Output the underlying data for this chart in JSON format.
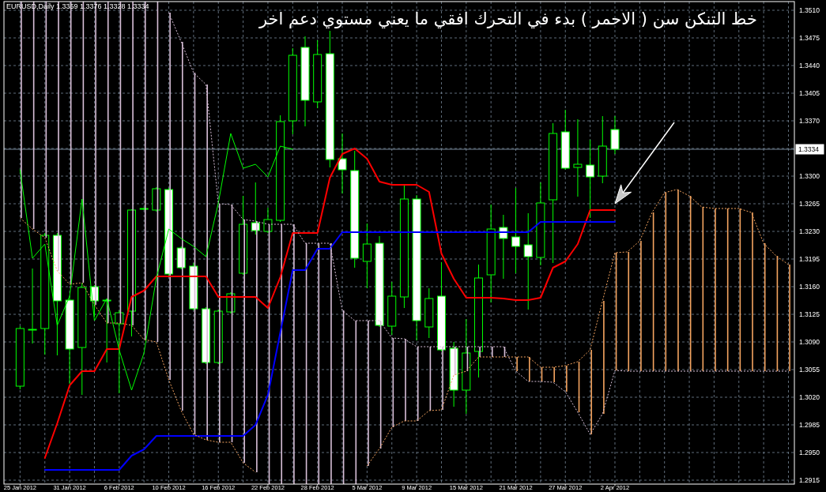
{
  "chart_data": {
    "type": "candlestick",
    "title": "EURUSD,Daily 1.3359 1.3376 1.3328 1.3334",
    "categories": [
      "25 Jan 2012",
      null,
      null,
      null,
      "31 Jan 2012",
      null,
      null,
      null,
      "6 Feb 2012",
      null,
      null,
      null,
      "10 Feb 2012",
      null,
      null,
      null,
      "16 Feb 2012",
      null,
      null,
      null,
      "22 Feb 2012",
      null,
      null,
      null,
      "28 Feb 2012",
      null,
      null,
      null,
      "5 Mar 2012",
      null,
      null,
      null,
      "9 Mar 2012",
      null,
      null,
      null,
      "15 Mar 2012",
      null,
      null,
      null,
      "21 Mar 2012",
      null,
      null,
      null,
      "27 Mar 2012",
      null,
      null,
      null,
      "2 Apr 2012",
      null,
      null,
      null,
      null,
      null,
      null,
      null,
      null,
      null,
      null,
      null,
      null,
      null,
      null
    ],
    "ylim": [
      1.291,
      1.3521
    ],
    "yticks": [
      1.2915,
      {
        "value": 1.295,
        "label": "1.2950"
      },
      1.2985,
      {
        "value": 1.302,
        "label": "1.3020"
      },
      1.3055,
      {
        "value": 1.309,
        "label": "1.3090"
      },
      1.3125,
      {
        "value": 1.316,
        "label": "1.3160"
      },
      1.3195,
      {
        "value": 1.323,
        "label": "1.3230"
      },
      1.3265,
      {
        "value": 1.33,
        "label": "1.3300"
      },
      {
        "value": 1.3335,
        "label": null
      },
      {
        "value": 1.337,
        "label": "1.3370"
      },
      1.3405,
      {
        "value": 1.344,
        "label": "1.3440"
      },
      1.3475,
      {
        "value": 1.351,
        "label": "1.3510"
      }
    ],
    "grid": true,
    "series": [
      {
        "type": "candlestick",
        "color": "#00ff00",
        "ohlc": [
          [
            1.3034,
            1.311,
            1.303,
            1.3107
          ],
          [
            1.3105,
            1.3183,
            1.3088,
            1.3106
          ],
          [
            1.3107,
            1.3228,
            1.3074,
            1.3225
          ],
          [
            1.3225,
            1.3228,
            1.3073,
            1.3142
          ],
          [
            1.3143,
            1.3148,
            1.3037,
            1.3081
          ],
          [
            1.3083,
            1.3165,
            1.3023,
            1.3159
          ],
          [
            1.316,
            1.3162,
            1.3122,
            1.3142
          ],
          [
            1.3142,
            1.3144,
            1.3064,
            1.3143
          ],
          [
            1.3113,
            1.313,
            1.3025,
            1.3127
          ],
          [
            1.3129,
            1.3258,
            1.3097,
            1.3257
          ],
          [
            1.3258,
            1.326,
            1.3257,
            1.3259
          ],
          [
            1.3257,
            1.3286,
            1.3255,
            1.3284
          ],
          [
            1.3283,
            1.3285,
            1.3174,
            1.3176
          ],
          [
            1.3209,
            1.3211,
            1.3182,
            1.3184
          ],
          [
            1.3186,
            1.319,
            1.313,
            1.3132
          ],
          [
            1.3132,
            1.3134,
            1.3062,
            1.3064
          ],
          [
            1.3064,
            1.3131,
            1.3062,
            1.3129
          ],
          [
            1.3128,
            1.3153,
            1.3126,
            1.3151
          ],
          [
            1.3177,
            1.3275,
            1.3175,
            1.3239
          ],
          [
            1.3241,
            1.3292,
            1.3226,
            1.3231
          ],
          [
            1.323,
            1.326,
            1.3228,
            1.3245
          ],
          [
            1.3244,
            1.3377,
            1.3242,
            1.3369
          ],
          [
            1.337,
            1.3462,
            1.3353,
            1.3453
          ],
          [
            1.3463,
            1.3477,
            1.3363,
            1.3396
          ],
          [
            1.3394,
            1.3472,
            1.3386,
            1.3454
          ],
          [
            1.3455,
            1.3484,
            1.3311,
            1.3321
          ],
          [
            1.3322,
            1.3354,
            1.3278,
            1.3308
          ],
          [
            1.3307,
            1.3332,
            1.3184,
            1.3196
          ],
          [
            1.3192,
            1.324,
            1.3158,
            1.3214
          ],
          [
            1.3215,
            1.3224,
            1.3109,
            1.3111
          ],
          [
            1.311,
            1.3166,
            1.3099,
            1.3148
          ],
          [
            1.3147,
            1.3288,
            1.3133,
            1.3271
          ],
          [
            1.3271,
            1.3276,
            1.3092,
            1.3117
          ],
          [
            1.3109,
            1.3158,
            1.3095,
            1.3145
          ],
          [
            1.3148,
            1.3191,
            1.3078,
            1.308
          ],
          [
            1.3082,
            1.309,
            1.3008,
            1.3029
          ],
          [
            1.3029,
            1.3119,
            1.2999,
            1.3076
          ],
          [
            1.3078,
            1.3188,
            1.3045,
            1.3171
          ],
          [
            1.3175,
            1.3264,
            1.314,
            1.3233
          ],
          [
            1.3235,
            1.3251,
            1.317,
            1.3221
          ],
          [
            1.3223,
            1.3285,
            1.3177,
            1.3211
          ],
          [
            1.3213,
            1.3253,
            1.3131,
            1.3198
          ],
          [
            1.3197,
            1.3292,
            1.3187,
            1.3266
          ],
          [
            1.327,
            1.3367,
            1.319,
            1.3354
          ],
          [
            1.3356,
            1.3384,
            1.3308,
            1.331
          ],
          [
            1.3311,
            1.3372,
            1.3274,
            1.3315
          ],
          [
            1.3314,
            1.3346,
            1.3247,
            1.3299
          ],
          [
            1.33,
            1.3376,
            1.3291,
            1.3338
          ],
          [
            1.3359,
            1.3376,
            1.3328,
            1.3334
          ],
          null,
          null,
          null,
          null,
          null,
          null,
          null,
          null,
          null,
          null,
          null,
          null,
          null,
          null
        ],
        "colors": [
          "#000000",
          "#000000",
          "#000000",
          "#ffffff",
          "#ffffff",
          "#000000",
          "#ffffff",
          "#000000",
          "#000000",
          "#000000",
          "#000000",
          "#000000",
          "#ffffff",
          "#ffffff",
          "#ffffff",
          "#ffffff",
          "#000000",
          "#000000",
          "#000000",
          "#ffffff",
          "#000000",
          "#000000",
          "#000000",
          "#ffffff",
          "#000000",
          "#ffffff",
          "#ffffff",
          "#ffffff",
          "#000000",
          "#ffffff",
          "#000000",
          "#000000",
          "#ffffff",
          "#000000",
          "#ffffff",
          "#ffffff",
          "#000000",
          "#000000",
          "#000000",
          "#ffffff",
          "#ffffff",
          "#ffffff",
          "#000000",
          "#000000",
          "#ffffff",
          "#000000",
          "#ffffff",
          "#000000",
          "#ffffff",
          null,
          null,
          null,
          null,
          null,
          null,
          null,
          null,
          null,
          null,
          null,
          null,
          null,
          null
        ]
      },
      {
        "type": "line",
        "color": "#ff0000",
        "values": [
          null,
          null,
          1.2943,
          1.2987,
          1.3035,
          1.3053,
          1.3053,
          1.3081,
          1.3081,
          1.3147,
          1.3155,
          1.3173,
          1.3173,
          1.3173,
          1.3173,
          1.3173,
          1.3147,
          1.3147,
          1.3147,
          1.3147,
          1.3133,
          1.3172,
          1.3228,
          1.3228,
          1.3228,
          1.3298,
          1.3328,
          1.3335,
          1.3322,
          1.3293,
          1.3289,
          1.3289,
          1.3289,
          1.328,
          1.3202,
          1.317,
          1.3146,
          1.3146,
          1.3146,
          1.3145,
          1.3143,
          1.3143,
          1.3146,
          1.3184,
          1.3192,
          1.3214,
          1.3257,
          1.3257,
          1.3257,
          null,
          null,
          null,
          null,
          null,
          null,
          null,
          null,
          null,
          null,
          null,
          null,
          null,
          null
        ]
      },
      {
        "type": "line",
        "color": "#0000ff",
        "values": [
          null,
          null,
          1.2928,
          1.2928,
          1.2928,
          1.2928,
          1.2928,
          1.2928,
          1.2928,
          1.2946,
          1.2954,
          1.2971,
          1.2971,
          1.2971,
          1.2971,
          1.2971,
          1.2971,
          1.2971,
          1.2971,
          1.2985,
          1.3023,
          1.3102,
          1.3181,
          1.3181,
          1.3208,
          1.3208,
          1.3229,
          1.3229,
          1.3229,
          1.3229,
          1.3229,
          1.3229,
          1.3229,
          1.3229,
          1.3229,
          1.3229,
          1.3229,
          1.3229,
          1.3229,
          1.3229,
          1.3229,
          1.3229,
          1.3242,
          1.3242,
          1.3242,
          1.3242,
          1.3242,
          1.3242,
          1.3242,
          null,
          null,
          null,
          null,
          null,
          null,
          null,
          null,
          null,
          null,
          null,
          null,
          null,
          null
        ]
      },
      {
        "type": "line",
        "color": "#00ff00",
        "values": [
          1.3308,
          1.3196,
          1.3214,
          1.3111,
          1.3148,
          1.3271,
          1.3117,
          1.3145,
          1.308,
          1.3029,
          1.3076,
          1.3171,
          1.3233,
          1.3221,
          1.3211,
          1.3198,
          1.3266,
          1.3354,
          1.331,
          1.3315,
          1.3299,
          1.3338,
          1.3334,
          null,
          null,
          null,
          null,
          null,
          null,
          null,
          null,
          null,
          null,
          null,
          null,
          null,
          null,
          null,
          null,
          null,
          null,
          null,
          null,
          null,
          null,
          null,
          null,
          null,
          null,
          null,
          null,
          null,
          null,
          null,
          null,
          null,
          null,
          null,
          null,
          null,
          null,
          null,
          null
        ]
      },
      {
        "type": "line",
        "color": "#f4a460",
        "line_style": "dotted",
        "values": [
          1.3247,
          1.3233,
          1.3222,
          1.318,
          1.3163,
          1.3165,
          1.3137,
          1.3114,
          1.3114,
          1.3111,
          1.3093,
          1.309,
          1.3042,
          1.3003,
          1.2973,
          1.2966,
          1.2963,
          1.2963,
          1.2937,
          1.2925,
          null,
          null,
          null,
          null,
          null,
          null,
          null,
          null,
          1.2933,
          1.2955,
          1.2982,
          1.299,
          1.299,
          1.3003,
          1.3004,
          1.3048,
          1.3053,
          1.3071,
          1.3071,
          1.3071,
          1.3071,
          1.3071,
          1.3058,
          1.3058,
          1.306,
          1.3065,
          1.308,
          1.3142,
          1.3203,
          1.3204,
          1.3218,
          1.3254,
          1.3279,
          1.3283,
          1.3275,
          1.3261,
          1.3259,
          1.3259,
          1.3259,
          1.3254,
          1.3215,
          1.3199,
          1.3188
        ]
      },
      {
        "type": "line",
        "color": "#d8bfd8",
        "line_style": "dotted",
        "values": [
          null,
          null,
          null,
          null,
          null,
          null,
          null,
          null,
          null,
          null,
          null,
          null,
          1.3507,
          1.347,
          1.3431,
          1.3416,
          1.3265,
          1.3264,
          1.3245,
          1.3243,
          1.3239,
          1.3239,
          1.3239,
          1.3215,
          1.3215,
          1.3215,
          1.313,
          1.3117,
          1.3117,
          1.3117,
          1.3095,
          1.3094,
          1.3084,
          1.3084,
          1.3084,
          1.3084,
          1.3084,
          1.3084,
          1.3084,
          1.3084,
          1.3053,
          1.304,
          1.304,
          1.3039,
          1.3027,
          1.3001,
          1.2973,
          1.2999,
          1.3054,
          1.3053,
          1.3053,
          1.3053,
          1.3053,
          1.3053,
          1.3053,
          1.3053,
          1.3053,
          1.3053,
          1.3053,
          1.3053,
          1.3053,
          1.3053,
          1.3053
        ]
      },
      {
        "type": "bar",
        "base": [
          1.3247,
          1.3233,
          1.3222,
          1.318,
          1.3163,
          1.3165,
          1.3137,
          1.3114,
          1.3114,
          1.3111,
          1.3093,
          1.309,
          1.3042,
          1.3003,
          1.2973,
          1.2966,
          1.2963,
          1.2963,
          1.2937,
          1.2925,
          1.291,
          1.291,
          1.291,
          1.291,
          1.291,
          1.291,
          1.291,
          1.291,
          1.2933,
          1.2955,
          1.2982,
          1.299,
          1.299,
          1.3003,
          1.3004,
          1.3048,
          1.3053,
          1.3071,
          1.3071,
          1.3071,
          1.3053,
          1.304,
          1.304,
          1.3039,
          1.3027,
          1.3001,
          1.2973,
          1.2999,
          1.3054,
          1.3053,
          1.3053,
          1.3053,
          1.3053,
          1.3053,
          1.3053,
          1.3053,
          1.3053,
          1.3053,
          1.3053,
          1.3053,
          1.3053,
          1.3053,
          1.3053
        ],
        "values": [
          0.0274,
          0.0288,
          0.0299,
          0.0341,
          0.0358,
          0.0356,
          0.0384,
          0.0407,
          0.0407,
          0.041,
          0.0428,
          0.0431,
          0.0465,
          0.0467,
          0.0458,
          0.045,
          0.0302,
          0.0301,
          0.0308,
          0.0318,
          0.0329,
          0.0329,
          0.0329,
          0.0305,
          0.0305,
          0.0305,
          0.022,
          0.0207,
          0.0184,
          0.0162,
          0.0113,
          0.0104,
          0.0094,
          0.0081,
          0.008,
          0.0036,
          0.0031,
          0.0013,
          0.0013,
          0.0013,
          0.0018,
          0.0031,
          0.0018,
          0.0019,
          0.0033,
          0.0064,
          0.0107,
          0.0143,
          0.0149,
          0.0151,
          0.0165,
          0.0201,
          0.0226,
          0.023,
          0.0222,
          0.0208,
          0.0206,
          0.0206,
          0.0206,
          0.0201,
          0.0162,
          0.0146,
          0.0135
        ],
        "colors": [
          "#d8bfd8",
          "#d8bfd8",
          "#d8bfd8",
          "#d8bfd8",
          "#d8bfd8",
          "#d8bfd8",
          "#d8bfd8",
          "#d8bfd8",
          "#d8bfd8",
          "#d8bfd8",
          "#d8bfd8",
          "#d8bfd8",
          "#d8bfd8",
          "#d8bfd8",
          "#d8bfd8",
          "#d8bfd8",
          "#d8bfd8",
          "#d8bfd8",
          "#d8bfd8",
          "#d8bfd8",
          "#d8bfd8",
          "#d8bfd8",
          "#d8bfd8",
          "#d8bfd8",
          "#d8bfd8",
          "#d8bfd8",
          "#d8bfd8",
          "#d8bfd8",
          "#d8bfd8",
          "#d8bfd8",
          "#d8bfd8",
          "#d8bfd8",
          "#d8bfd8",
          "#d8bfd8",
          "#d8bfd8",
          "#d8bfd8",
          "#d8bfd8",
          "#d8bfd8",
          "#d8bfd8",
          "#d8bfd8",
          "#f4a460",
          "#f4a460",
          "#f4a460",
          "#f4a460",
          "#f4a460",
          "#f4a460",
          "#f4a460",
          "#f4a460",
          "#f4a460",
          "#f4a460",
          "#f4a460",
          "#f4a460",
          "#f4a460",
          "#f4a460",
          "#f4a460",
          "#f4a460",
          "#f4a460",
          "#f4a460",
          "#f4a460",
          "#f4a460",
          "#f4a460",
          "#f4a460",
          "#f4a460"
        ]
      }
    ],
    "ref_lines": [
      {
        "axis": "y",
        "value": 1.3334,
        "label": "1.3334",
        "color": "#778899"
      }
    ],
    "annotations": [
      "خط التنكن سن ( الاحمر ) بدء في التحرك افقي ما يعني مستوي دعم اخر"
    ]
  }
}
